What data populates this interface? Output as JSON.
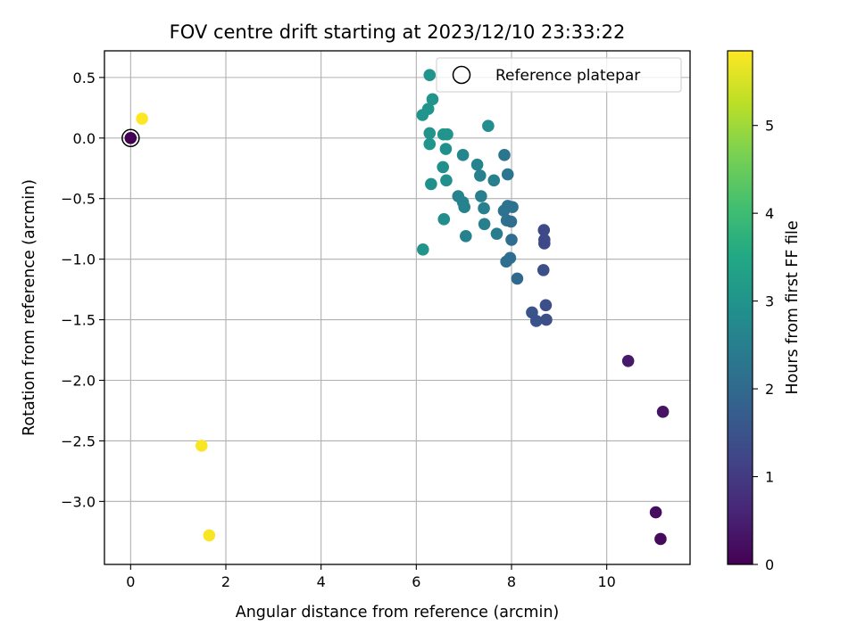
{
  "chart_data": {
    "type": "scatter",
    "title": "FOV centre drift starting at 2023/12/10 23:33:22",
    "xlabel": "Angular distance from reference (arcmin)",
    "ylabel": "Rotation from reference (arcmin)",
    "xlim": [
      -0.55,
      11.75
    ],
    "ylim": [
      -3.52,
      0.72
    ],
    "xticks": [
      0,
      2,
      4,
      6,
      8,
      10
    ],
    "yticks": [
      0.5,
      0.0,
      -0.5,
      -1.0,
      -1.5,
      -2.0,
      -2.5,
      -3.0
    ],
    "xtick_labels": [
      "0",
      "2",
      "4",
      "6",
      "8",
      "10"
    ],
    "ytick_labels": [
      "0.5",
      "0.0",
      "−0.5",
      "−1.0",
      "−1.5",
      "−2.0",
      "−2.5",
      "−3.0"
    ],
    "grid": true,
    "legend": {
      "position": "top-right",
      "label": "Reference platepar"
    },
    "colorbar": {
      "label": "Hours from first FF file",
      "range": [
        0,
        5.85
      ],
      "ticks": [
        0,
        1,
        2,
        3,
        4,
        5
      ],
      "tick_labels": [
        "0",
        "1",
        "2",
        "3",
        "4",
        "5"
      ],
      "colormap": "viridis"
    },
    "reference_point": {
      "x": 0.0,
      "y": 0.0
    },
    "points": [
      {
        "x": 0.0,
        "y": 0.0,
        "c": 0.0
      },
      {
        "x": 0.24,
        "y": 0.16,
        "c": 5.85
      },
      {
        "x": 1.49,
        "y": -2.54,
        "c": 5.8
      },
      {
        "x": 1.65,
        "y": -3.28,
        "c": 5.8
      },
      {
        "x": 10.45,
        "y": -1.84,
        "c": 0.4
      },
      {
        "x": 11.18,
        "y": -2.26,
        "c": 0.3
      },
      {
        "x": 11.03,
        "y": -3.09,
        "c": 0.2
      },
      {
        "x": 11.13,
        "y": -3.31,
        "c": 0.15
      },
      {
        "x": 6.28,
        "y": 0.52,
        "c": 3.0
      },
      {
        "x": 6.34,
        "y": 0.32,
        "c": 3.0
      },
      {
        "x": 6.25,
        "y": 0.24,
        "c": 3.0
      },
      {
        "x": 6.13,
        "y": 0.19,
        "c": 3.0
      },
      {
        "x": 6.28,
        "y": 0.04,
        "c": 3.0
      },
      {
        "x": 6.57,
        "y": 0.03,
        "c": 3.0
      },
      {
        "x": 6.65,
        "y": 0.03,
        "c": 3.0
      },
      {
        "x": 6.28,
        "y": -0.05,
        "c": 3.0
      },
      {
        "x": 6.62,
        "y": -0.09,
        "c": 2.9
      },
      {
        "x": 6.56,
        "y": -0.24,
        "c": 2.9
      },
      {
        "x": 6.63,
        "y": -0.35,
        "c": 2.9
      },
      {
        "x": 6.31,
        "y": -0.38,
        "c": 2.9
      },
      {
        "x": 6.14,
        "y": -0.92,
        "c": 3.0
      },
      {
        "x": 6.58,
        "y": -0.67,
        "c": 2.8
      },
      {
        "x": 7.51,
        "y": 0.1,
        "c": 2.8
      },
      {
        "x": 6.98,
        "y": -0.14,
        "c": 2.7
      },
      {
        "x": 7.28,
        "y": -0.22,
        "c": 2.6
      },
      {
        "x": 7.34,
        "y": -0.31,
        "c": 2.5
      },
      {
        "x": 7.63,
        "y": -0.35,
        "c": 2.5
      },
      {
        "x": 6.88,
        "y": -0.48,
        "c": 2.6
      },
      {
        "x": 6.98,
        "y": -0.53,
        "c": 2.6
      },
      {
        "x": 7.01,
        "y": -0.57,
        "c": 2.6
      },
      {
        "x": 7.36,
        "y": -0.48,
        "c": 2.5
      },
      {
        "x": 7.42,
        "y": -0.58,
        "c": 2.5
      },
      {
        "x": 7.04,
        "y": -0.81,
        "c": 2.6
      },
      {
        "x": 7.43,
        "y": -0.71,
        "c": 2.5
      },
      {
        "x": 7.69,
        "y": -0.79,
        "c": 2.4
      },
      {
        "x": 7.85,
        "y": -0.14,
        "c": 2.3
      },
      {
        "x": 7.92,
        "y": -0.3,
        "c": 2.3
      },
      {
        "x": 7.84,
        "y": -0.6,
        "c": 2.2
      },
      {
        "x": 7.92,
        "y": -0.56,
        "c": 2.2
      },
      {
        "x": 8.02,
        "y": -0.57,
        "c": 2.2
      },
      {
        "x": 7.9,
        "y": -0.68,
        "c": 2.2
      },
      {
        "x": 7.99,
        "y": -0.69,
        "c": 2.1
      },
      {
        "x": 8.0,
        "y": -0.84,
        "c": 2.1
      },
      {
        "x": 7.97,
        "y": -0.99,
        "c": 2.1
      },
      {
        "x": 7.89,
        "y": -1.02,
        "c": 2.1
      },
      {
        "x": 8.12,
        "y": -1.16,
        "c": 2.0
      },
      {
        "x": 8.68,
        "y": -0.76,
        "c": 1.3
      },
      {
        "x": 8.69,
        "y": -0.84,
        "c": 1.3
      },
      {
        "x": 8.69,
        "y": -0.87,
        "c": 1.3
      },
      {
        "x": 8.67,
        "y": -1.09,
        "c": 1.4
      },
      {
        "x": 8.72,
        "y": -1.38,
        "c": 1.4
      },
      {
        "x": 8.43,
        "y": -1.44,
        "c": 1.5
      },
      {
        "x": 8.52,
        "y": -1.51,
        "c": 1.5
      },
      {
        "x": 8.73,
        "y": -1.5,
        "c": 1.4
      }
    ]
  }
}
